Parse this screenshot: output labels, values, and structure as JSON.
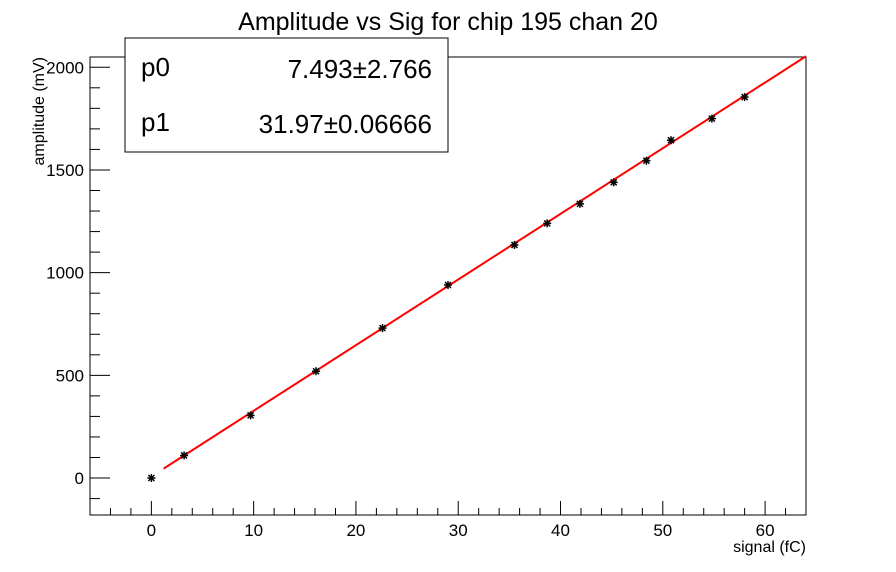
{
  "chart_data": {
    "type": "scatter",
    "title": "Amplitude vs Sig for chip 195 chan 20",
    "xlabel": "signal (fC)",
    "ylabel": "amplitude (mV)",
    "xlim": [
      -6,
      64
    ],
    "ylim": [
      -180,
      2050
    ],
    "x_ticks": [
      0,
      10,
      20,
      30,
      40,
      50,
      60
    ],
    "y_ticks": [
      0,
      500,
      1000,
      1500,
      2000
    ],
    "grid": false,
    "series": [
      {
        "marker": "asterisk",
        "color": "#000000",
        "points": [
          {
            "x": 0,
            "y": 0
          },
          {
            "x": 3.2,
            "y": 110
          },
          {
            "x": 9.7,
            "y": 305
          },
          {
            "x": 16.1,
            "y": 520
          },
          {
            "x": 22.6,
            "y": 730
          },
          {
            "x": 29.0,
            "y": 940
          },
          {
            "x": 35.5,
            "y": 1135
          },
          {
            "x": 38.7,
            "y": 1240
          },
          {
            "x": 41.9,
            "y": 1335
          },
          {
            "x": 45.2,
            "y": 1440
          },
          {
            "x": 48.4,
            "y": 1545
          },
          {
            "x": 50.8,
            "y": 1645
          },
          {
            "x": 54.8,
            "y": 1750
          },
          {
            "x": 58.0,
            "y": 1855
          }
        ]
      }
    ],
    "fit": {
      "color": "#ff0000",
      "x_start": 1.2,
      "x_end": 64,
      "params": [
        {
          "name": "p0",
          "value": "7.493",
          "error": "2.766",
          "numeric": 7.493
        },
        {
          "name": "p1",
          "value": "31.97",
          "error": "0.06666",
          "numeric": 31.97
        }
      ],
      "pm_symbol": "±"
    },
    "stats_box_position": "top-left"
  }
}
